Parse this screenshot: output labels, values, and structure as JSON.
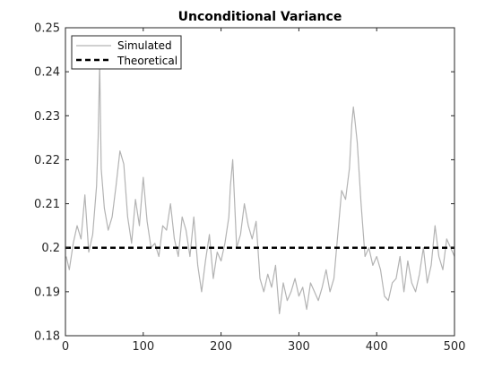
{
  "chart_data": {
    "type": "line",
    "title": "Unconditional Variance",
    "xlabel": "",
    "ylabel": "",
    "xlim": [
      0,
      500
    ],
    "ylim": [
      0.18,
      0.25
    ],
    "x_ticks": [
      "0",
      "100",
      "200",
      "300",
      "400",
      "500"
    ],
    "y_ticks": [
      "0.18",
      "0.19",
      "0.2",
      "0.21",
      "0.22",
      "0.23",
      "0.24",
      "0.25"
    ],
    "legend_position": "top-left",
    "grid": false,
    "series": [
      {
        "name": "Simulated",
        "color": "#b3b3b3",
        "style": "solid",
        "x": [
          1,
          5,
          10,
          15,
          20,
          25,
          30,
          35,
          40,
          42,
          44,
          46,
          50,
          55,
          60,
          65,
          70,
          75,
          80,
          85,
          90,
          95,
          100,
          105,
          110,
          115,
          120,
          125,
          130,
          135,
          140,
          145,
          150,
          155,
          160,
          165,
          170,
          175,
          180,
          185,
          190,
          195,
          200,
          205,
          210,
          212,
          215,
          220,
          225,
          230,
          235,
          240,
          245,
          250,
          255,
          260,
          265,
          270,
          275,
          280,
          285,
          290,
          295,
          300,
          305,
          310,
          315,
          320,
          325,
          330,
          335,
          340,
          345,
          350,
          355,
          360,
          365,
          368,
          370,
          372,
          375,
          380,
          385,
          390,
          395,
          400,
          405,
          410,
          415,
          420,
          425,
          430,
          435,
          440,
          445,
          450,
          455,
          460,
          465,
          470,
          475,
          480,
          485,
          490,
          495,
          500
        ],
        "values": [
          0.198,
          0.195,
          0.201,
          0.205,
          0.202,
          0.212,
          0.199,
          0.203,
          0.214,
          0.225,
          0.242,
          0.218,
          0.209,
          0.204,
          0.207,
          0.214,
          0.222,
          0.219,
          0.207,
          0.201,
          0.211,
          0.205,
          0.216,
          0.206,
          0.2,
          0.201,
          0.198,
          0.205,
          0.204,
          0.21,
          0.202,
          0.198,
          0.207,
          0.204,
          0.198,
          0.207,
          0.196,
          0.19,
          0.197,
          0.203,
          0.193,
          0.199,
          0.197,
          0.201,
          0.207,
          0.214,
          0.22,
          0.2,
          0.203,
          0.21,
          0.205,
          0.202,
          0.206,
          0.193,
          0.19,
          0.194,
          0.191,
          0.196,
          0.185,
          0.192,
          0.188,
          0.19,
          0.193,
          0.189,
          0.191,
          0.186,
          0.192,
          0.19,
          0.188,
          0.191,
          0.195,
          0.19,
          0.193,
          0.203,
          0.213,
          0.211,
          0.218,
          0.228,
          0.232,
          0.229,
          0.224,
          0.21,
          0.198,
          0.2,
          0.196,
          0.198,
          0.195,
          0.189,
          0.188,
          0.192,
          0.193,
          0.198,
          0.19,
          0.197,
          0.192,
          0.19,
          0.194,
          0.2,
          0.192,
          0.196,
          0.205,
          0.198,
          0.195,
          0.202,
          0.2,
          0.198
        ]
      },
      {
        "name": "Theoretical",
        "color": "#000000",
        "style": "dashed",
        "x": [
          0,
          500
        ],
        "values": [
          0.2,
          0.2
        ]
      }
    ]
  }
}
